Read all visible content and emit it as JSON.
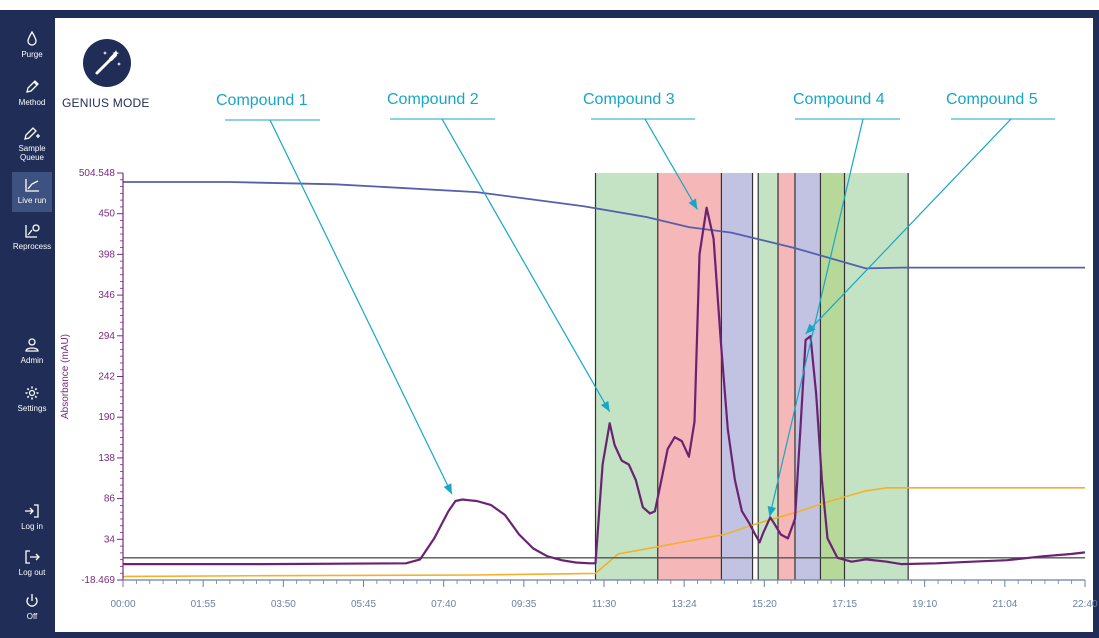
{
  "sidebar": {
    "items": [
      {
        "label": "Purge",
        "icon": "droplet-icon",
        "active": false
      },
      {
        "label": "Method",
        "icon": "pencil-icon",
        "active": false
      },
      {
        "label": "Sample Queue",
        "label_lines": [
          "Sample",
          "Queue"
        ],
        "icon": "pencil-plus-icon",
        "active": false
      },
      {
        "label": "Live run",
        "icon": "line-chart-icon",
        "active": true
      },
      {
        "label": "Reprocess",
        "icon": "chart-circle-icon",
        "active": false
      },
      {
        "label": "Admin",
        "icon": "user-icon",
        "active": false
      },
      {
        "label": "Settings",
        "icon": "gear-icon",
        "active": false
      },
      {
        "label": "Log in",
        "icon": "login-icon",
        "active": false
      },
      {
        "label": "Log out",
        "icon": "logout-icon",
        "active": false
      },
      {
        "label": "Off",
        "icon": "power-icon",
        "active": false
      }
    ]
  },
  "genius": {
    "label": "GENIUS MODE",
    "icon": "magic-wand-icon"
  },
  "annotations": [
    {
      "label": "Compound 1"
    },
    {
      "label": "Compound 2"
    },
    {
      "label": "Compound 3"
    },
    {
      "label": "Compound 4"
    },
    {
      "label": "Compound 5"
    }
  ],
  "colors": {
    "sidebar_bg": "#1f2d57",
    "active_item": "#3d5280",
    "annotation": "#17a7c5",
    "absorbance": "#6a2373",
    "gradient_b": "#5560ad",
    "gradient_a": "#f4b02a",
    "threshold": "#555555",
    "fraction_green": "#c4e3c4",
    "fraction_red": "#f5b7b7",
    "fraction_purple": "#c2c2e2"
  },
  "chart_data": {
    "type": "line",
    "ylabel": "Absorbance (mAU)",
    "xlabel": "",
    "y_ticks": [
      "504.548",
      "450",
      "398",
      "346",
      "294",
      "242",
      "190",
      "138",
      "86",
      "34",
      "-18.469"
    ],
    "x_ticks": [
      "00:00",
      "01:55",
      "03:50",
      "05:45",
      "07:40",
      "09:35",
      "11:30",
      "13:24",
      "15:20",
      "17:15",
      "19:10",
      "21:04",
      "22:40"
    ],
    "ylim": [
      -18.469,
      504.548
    ],
    "xlim_min": [
      0,
      1360
    ],
    "grid": false,
    "fractions": [
      {
        "start_min": 668,
        "end_min": 756,
        "color": "green"
      },
      {
        "start_min": 756,
        "end_min": 846,
        "color": "red"
      },
      {
        "start_min": 846,
        "end_min": 890,
        "color": "purple"
      },
      {
        "start_min": 890,
        "end_min": 898,
        "color": "white"
      },
      {
        "start_min": 898,
        "end_min": 926,
        "color": "green"
      },
      {
        "start_min": 926,
        "end_min": 950,
        "color": "red"
      },
      {
        "start_min": 950,
        "end_min": 986,
        "color": "purple"
      },
      {
        "start_min": 986,
        "end_min": 1020,
        "color": "green_dark"
      },
      {
        "start_min": 1020,
        "end_min": 1110,
        "color": "green"
      }
    ],
    "series": [
      {
        "key": "gradient_b",
        "x": [
          0,
          150,
          300,
          500,
          650,
          740,
          800,
          860,
          950,
          1050,
          1100,
          1200,
          1360
        ],
        "y": [
          493,
          493,
          490,
          480,
          462,
          448,
          435,
          428,
          408,
          382,
          383,
          383,
          383
        ]
      },
      {
        "key": "gradient_a",
        "x": [
          0,
          200,
          500,
          668,
          700,
          850,
          900,
          950,
          1000,
          1050,
          1080,
          1200,
          1360
        ],
        "y": [
          -14,
          -13,
          -12,
          -10,
          15,
          40,
          55,
          68,
          83,
          96,
          100,
          100,
          100
        ]
      },
      {
        "key": "threshold",
        "x": [
          0,
          1360
        ],
        "y": [
          10,
          10
        ]
      },
      {
        "key": "absorbance",
        "x": [
          0,
          200,
          400,
          420,
          440,
          460,
          470,
          480,
          490,
          500,
          520,
          540,
          560,
          580,
          600,
          620,
          640,
          660,
          668,
          678,
          688,
          695,
          705,
          715,
          725,
          735,
          745,
          752,
          760,
          770,
          780,
          790,
          800,
          808,
          815,
          825,
          835,
          845,
          855,
          865,
          875,
          885,
          895,
          900,
          905,
          910,
          915,
          920,
          930,
          940,
          950,
          958,
          965,
          972,
          980,
          988,
          996,
          1010,
          1030,
          1050,
          1080,
          1100,
          1150,
          1200,
          1250,
          1300,
          1340,
          1360
        ],
        "y": [
          2,
          2,
          3,
          8,
          35,
          70,
          83,
          85,
          84,
          83,
          78,
          65,
          40,
          22,
          12,
          7,
          4,
          3,
          3,
          130,
          183,
          155,
          135,
          130,
          110,
          75,
          67,
          70,
          105,
          150,
          165,
          160,
          140,
          185,
          400,
          460,
          420,
          290,
          175,
          110,
          70,
          55,
          38,
          30,
          42,
          52,
          62,
          55,
          40,
          35,
          60,
          180,
          290,
          295,
          220,
          110,
          35,
          10,
          5,
          8,
          5,
          2,
          3,
          5,
          7,
          12,
          15,
          17
        ]
      }
    ],
    "annotation_points": [
      {
        "label": "Compound 1",
        "x_min": 465,
        "y": 84
      },
      {
        "label": "Compound 2",
        "x_min": 688,
        "y": 190
      },
      {
        "label": "Compound 3",
        "x_min": 812,
        "y": 450
      },
      {
        "label": "Compound 4",
        "x_min": 914,
        "y": 55
      },
      {
        "label": "Compound 5",
        "x_min": 965,
        "y": 290
      }
    ]
  }
}
